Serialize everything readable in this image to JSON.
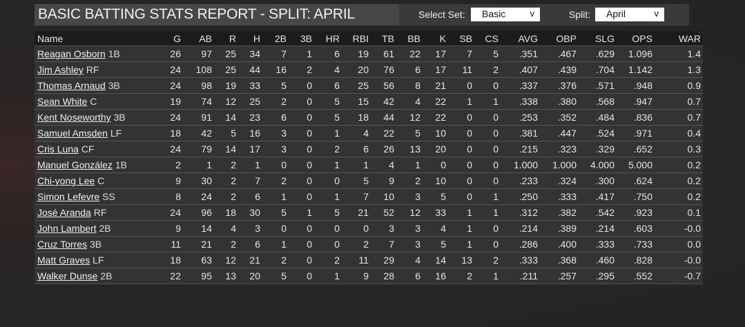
{
  "title": "BASIC BATTING STATS REPORT - SPLIT: APRIL",
  "controls": {
    "select_set_label": "Select Set:",
    "select_set_value": "Basic",
    "split_label": "Split:",
    "split_value": "April",
    "chevron": "v"
  },
  "columns": [
    "Name",
    "G",
    "AB",
    "R",
    "H",
    "2B",
    "3B",
    "HR",
    "RBI",
    "TB",
    "BB",
    "K",
    "SB",
    "CS",
    "AVG",
    "OBP",
    "SLG",
    "OPS",
    "WAR"
  ],
  "rows": [
    {
      "name": "Reagan Osborn",
      "pos": "1B",
      "stats": [
        "26",
        "97",
        "25",
        "34",
        "7",
        "1",
        "6",
        "19",
        "61",
        "22",
        "17",
        "7",
        "5",
        ".351",
        ".467",
        ".629",
        "1.096",
        "1.4"
      ]
    },
    {
      "name": "Jim Ashley",
      "pos": "RF",
      "stats": [
        "24",
        "108",
        "25",
        "44",
        "16",
        "2",
        "4",
        "20",
        "76",
        "6",
        "17",
        "11",
        "2",
        ".407",
        ".439",
        ".704",
        "1.142",
        "1.3"
      ]
    },
    {
      "name": "Thomas Arnaud",
      "pos": "3B",
      "stats": [
        "24",
        "98",
        "19",
        "33",
        "5",
        "0",
        "6",
        "25",
        "56",
        "8",
        "21",
        "0",
        "0",
        ".337",
        ".376",
        ".571",
        ".948",
        "0.9"
      ]
    },
    {
      "name": "Sean White",
      "pos": "C",
      "stats": [
        "19",
        "74",
        "12",
        "25",
        "2",
        "0",
        "5",
        "15",
        "42",
        "4",
        "22",
        "1",
        "1",
        ".338",
        ".380",
        ".568",
        ".947",
        "0.7"
      ]
    },
    {
      "name": "Kent Noseworthy",
      "pos": "3B",
      "stats": [
        "24",
        "91",
        "14",
        "23",
        "6",
        "0",
        "5",
        "18",
        "44",
        "12",
        "22",
        "0",
        "0",
        ".253",
        ".352",
        ".484",
        ".836",
        "0.7"
      ]
    },
    {
      "name": "Samuel Amsden",
      "pos": "LF",
      "stats": [
        "18",
        "42",
        "5",
        "16",
        "3",
        "0",
        "1",
        "4",
        "22",
        "5",
        "10",
        "0",
        "0",
        ".381",
        ".447",
        ".524",
        ".971",
        "0.4"
      ]
    },
    {
      "name": "Cris Luna",
      "pos": "CF",
      "stats": [
        "24",
        "79",
        "14",
        "17",
        "3",
        "0",
        "2",
        "6",
        "26",
        "13",
        "20",
        "0",
        "0",
        ".215",
        ".323",
        ".329",
        ".652",
        "0.3"
      ]
    },
    {
      "name": "Manuel González",
      "pos": "1B",
      "stats": [
        "2",
        "1",
        "2",
        "1",
        "0",
        "0",
        "1",
        "1",
        "4",
        "1",
        "0",
        "0",
        "0",
        "1.000",
        "1.000",
        "4.000",
        "5.000",
        "0.2"
      ]
    },
    {
      "name": "Chi-yong Lee",
      "pos": "C",
      "stats": [
        "9",
        "30",
        "2",
        "7",
        "2",
        "0",
        "0",
        "5",
        "9",
        "2",
        "10",
        "0",
        "0",
        ".233",
        ".324",
        ".300",
        ".624",
        "0.2"
      ]
    },
    {
      "name": "Simon Lefevre",
      "pos": "SS",
      "stats": [
        "8",
        "24",
        "2",
        "6",
        "1",
        "0",
        "1",
        "7",
        "10",
        "3",
        "5",
        "0",
        "1",
        ".250",
        ".333",
        ".417",
        ".750",
        "0.2"
      ]
    },
    {
      "name": "José Aranda",
      "pos": "RF",
      "stats": [
        "24",
        "96",
        "18",
        "30",
        "5",
        "1",
        "5",
        "21",
        "52",
        "12",
        "33",
        "1",
        "1",
        ".312",
        ".382",
        ".542",
        ".923",
        "0.1"
      ]
    },
    {
      "name": "John Lambert",
      "pos": "2B",
      "stats": [
        "9",
        "14",
        "4",
        "3",
        "0",
        "0",
        "0",
        "0",
        "3",
        "3",
        "4",
        "1",
        "0",
        ".214",
        ".389",
        ".214",
        ".603",
        "-0.0"
      ]
    },
    {
      "name": "Cruz Torres",
      "pos": "3B",
      "stats": [
        "11",
        "21",
        "2",
        "6",
        "1",
        "0",
        "0",
        "2",
        "7",
        "3",
        "5",
        "1",
        "0",
        ".286",
        ".400",
        ".333",
        ".733",
        "0.0"
      ]
    },
    {
      "name": "Matt Graves",
      "pos": "LF",
      "stats": [
        "18",
        "63",
        "12",
        "21",
        "2",
        "0",
        "2",
        "11",
        "29",
        "4",
        "14",
        "13",
        "2",
        ".333",
        ".368",
        ".460",
        ".828",
        "-0.0"
      ]
    },
    {
      "name": "Walker Dunse",
      "pos": "2B",
      "stats": [
        "22",
        "95",
        "13",
        "20",
        "5",
        "0",
        "1",
        "9",
        "28",
        "6",
        "16",
        "2",
        "1",
        ".211",
        ".257",
        ".295",
        ".552",
        "-0.7"
      ]
    }
  ]
}
